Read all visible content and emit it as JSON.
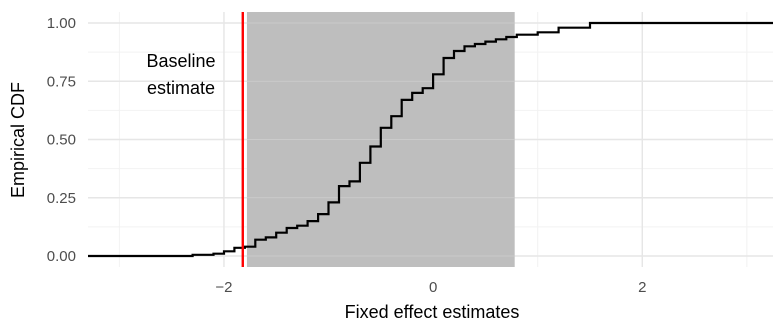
{
  "chart_data": {
    "type": "line",
    "subtype": "empirical-cdf-step",
    "title": "",
    "xlabel": "Fixed effect estimates",
    "ylabel": "Empirical CDF",
    "xlim": [
      -3.3,
      3.25
    ],
    "ylim": [
      0,
      1
    ],
    "x_ticks": [
      -2,
      0,
      2
    ],
    "x_tick_labels": [
      "−2",
      "0",
      "2"
    ],
    "y_ticks": [
      0,
      0.25,
      0.5,
      0.75,
      1.0
    ],
    "y_tick_labels": [
      "0.00",
      "0.25",
      "0.50",
      "0.75",
      "1.00"
    ],
    "grid": true,
    "shaded_interval": {
      "x_start": -1.78,
      "x_end": 0.78,
      "color": "#bebebe"
    },
    "reference_line": {
      "x": -1.82,
      "color": "#ff0000"
    },
    "annotation": {
      "lines": [
        "Baseline",
        "estimate"
      ]
    },
    "series": [
      {
        "color": "#000000",
        "points": [
          [
            -3.3,
            0.0
          ],
          [
            -2.35,
            0.0
          ],
          [
            -2.3,
            0.005
          ],
          [
            -2.1,
            0.01
          ],
          [
            -2.0,
            0.02
          ],
          [
            -1.9,
            0.035
          ],
          [
            -1.8,
            0.04
          ],
          [
            -1.7,
            0.07
          ],
          [
            -1.6,
            0.08
          ],
          [
            -1.5,
            0.1
          ],
          [
            -1.4,
            0.12
          ],
          [
            -1.3,
            0.13
          ],
          [
            -1.2,
            0.15
          ],
          [
            -1.1,
            0.18
          ],
          [
            -1.0,
            0.23
          ],
          [
            -0.9,
            0.3
          ],
          [
            -0.8,
            0.32
          ],
          [
            -0.7,
            0.4
          ],
          [
            -0.6,
            0.47
          ],
          [
            -0.5,
            0.55
          ],
          [
            -0.4,
            0.6
          ],
          [
            -0.3,
            0.67
          ],
          [
            -0.2,
            0.7
          ],
          [
            -0.1,
            0.72
          ],
          [
            0.0,
            0.78
          ],
          [
            0.1,
            0.85
          ],
          [
            0.2,
            0.88
          ],
          [
            0.3,
            0.9
          ],
          [
            0.4,
            0.91
          ],
          [
            0.5,
            0.92
          ],
          [
            0.6,
            0.93
          ],
          [
            0.7,
            0.94
          ],
          [
            0.8,
            0.95
          ],
          [
            1.0,
            0.96
          ],
          [
            1.2,
            0.98
          ],
          [
            1.5,
            1.0
          ],
          [
            3.25,
            1.0
          ]
        ]
      }
    ]
  }
}
